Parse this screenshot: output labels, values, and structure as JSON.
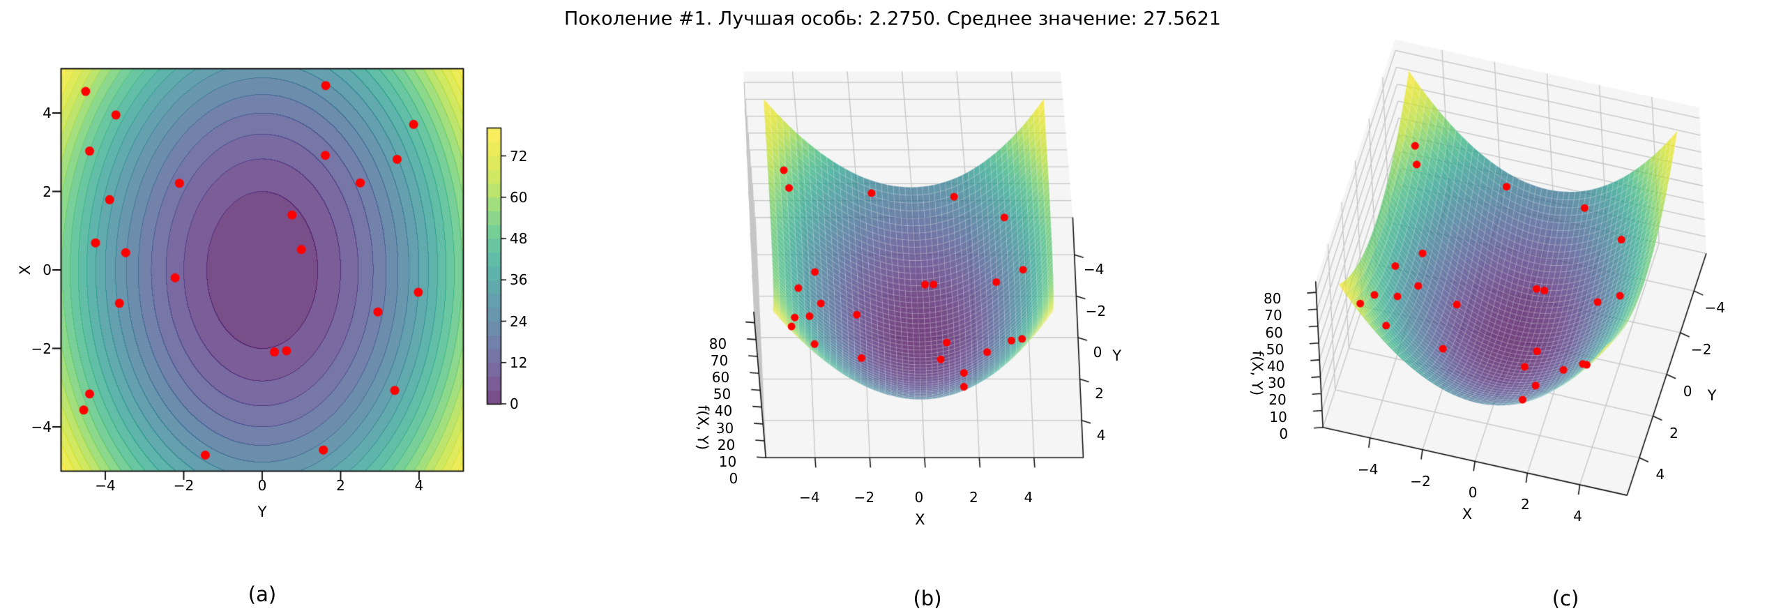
{
  "title": "Поколение #1. Лучшая особь: 2.2750. Среднее значение: 27.5621",
  "generation_label": "Поколение #1",
  "best_fitness": "2.2750",
  "mean_fitness": "27.5621",
  "chart_data": {
    "type": "surface",
    "function": "f(X, Y) = X^2 + 2*Y^2",
    "grid_range_Y": [
      -5.12,
      5.12
    ],
    "grid_range_X": [
      -5.12,
      5.12
    ],
    "levels": {
      "min": 0,
      "max": 80,
      "step": 4
    },
    "colormap": "viridis",
    "colormap_stops": [
      [
        0,
        "#440154"
      ],
      [
        0.1,
        "#482878"
      ],
      [
        0.2,
        "#3e4989"
      ],
      [
        0.3,
        "#31688e"
      ],
      [
        0.4,
        "#26828e"
      ],
      [
        0.5,
        "#1f9e89"
      ],
      [
        0.6,
        "#35b779"
      ],
      [
        0.7,
        "#6ece58"
      ],
      [
        0.8,
        "#b5de2b"
      ],
      [
        0.9,
        "#dde318"
      ],
      [
        1,
        "#fde725"
      ]
    ],
    "marker_color": "#ff0000",
    "population_points_YX": [
      [
        -4.5,
        4.55
      ],
      [
        -3.73,
        3.95
      ],
      [
        -4.4,
        3.03
      ],
      [
        -2.11,
        2.21
      ],
      [
        -3.89,
        1.79
      ],
      [
        -4.25,
        0.69
      ],
      [
        -3.48,
        0.44
      ],
      [
        1.62,
        4.7
      ],
      [
        3.86,
        3.71
      ],
      [
        1.61,
        2.92
      ],
      [
        3.44,
        2.82
      ],
      [
        2.5,
        2.22
      ],
      [
        0.76,
        1.4
      ],
      [
        1.0,
        0.52
      ],
      [
        -2.22,
        -0.2
      ],
      [
        -3.64,
        -0.85
      ],
      [
        -4.4,
        -3.16
      ],
      [
        -4.55,
        -3.57
      ],
      [
        -1.45,
        -4.72
      ],
      [
        3.98,
        -0.57
      ],
      [
        2.95,
        -1.07
      ],
      [
        0.31,
        -2.09
      ],
      [
        0.62,
        -2.06
      ],
      [
        3.38,
        -3.07
      ],
      [
        1.56,
        -4.59
      ]
    ],
    "panels": [
      {
        "id": "a",
        "caption": "(a)",
        "type": "contourf",
        "xlabel": "Y",
        "ylabel": "X",
        "xtick_labels": [
          "−4",
          "−2",
          "0",
          "2",
          "4"
        ],
        "ytick_labels": [
          "−4",
          "−2",
          "0",
          "2",
          "4"
        ],
        "colorbar_tick_labels": [
          "0",
          "12",
          "24",
          "36",
          "48",
          "60",
          "72"
        ]
      },
      {
        "id": "b",
        "caption": "(b)",
        "type": "surface3d",
        "xlabel": "Y",
        "ylabel": "X",
        "zlabel": "f(X, Y)",
        "xtick_labels": [
          "−4",
          "−2",
          "0",
          "2",
          "4"
        ],
        "ytick_labels": [
          "−4",
          "−2",
          "0",
          "2",
          "4"
        ],
        "ztick_labels": [
          "0",
          "10",
          "20",
          "30",
          "40",
          "50",
          "60",
          "70",
          "80"
        ]
      },
      {
        "id": "c",
        "caption": "(c)",
        "type": "surface3d",
        "xlabel": "Y",
        "ylabel": "X",
        "zlabel": "f(X, Y)",
        "xtick_labels": [
          "−4",
          "−2",
          "0",
          "2",
          "4"
        ],
        "ytick_labels": [
          "−4",
          "−2",
          "0",
          "2",
          "4"
        ],
        "ztick_labels": [
          "0",
          "10",
          "20",
          "30",
          "40",
          "50",
          "60",
          "70",
          "80"
        ]
      }
    ]
  }
}
